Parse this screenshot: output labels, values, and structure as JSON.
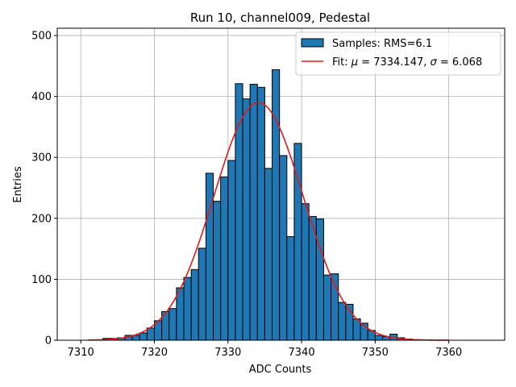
{
  "chart_data": {
    "type": "bar",
    "title": "Run 10, channel009, Pedestal",
    "xlabel": "ADC Counts",
    "ylabel": "Entries",
    "xlim": [
      7306.8,
      7367.6
    ],
    "ylim": [
      0,
      512
    ],
    "xticks": [
      7310,
      7320,
      7330,
      7340,
      7350,
      7360
    ],
    "yticks": [
      0,
      100,
      200,
      300,
      400,
      500
    ],
    "grid": true,
    "legend_position": "top-right",
    "histogram": {
      "name": "Samples: RMS=6.1",
      "color": "#1f77b4",
      "edgecolor": "#000000",
      "bin_width": 1,
      "bin_starts": [
        7313,
        7314,
        7315,
        7316,
        7317,
        7318,
        7319,
        7320,
        7321,
        7322,
        7323,
        7324,
        7325,
        7326,
        7327,
        7328,
        7329,
        7330,
        7331,
        7332,
        7333,
        7334,
        7335,
        7336,
        7337,
        7338,
        7339,
        7340,
        7341,
        7342,
        7343,
        7344,
        7345,
        7346,
        7347,
        7348,
        7349,
        7350,
        7351,
        7352,
        7353,
        7354,
        7355
      ],
      "counts": [
        3,
        3,
        4,
        8,
        8,
        12,
        20,
        32,
        47,
        52,
        86,
        103,
        116,
        151,
        274,
        228,
        268,
        295,
        421,
        396,
        420,
        415,
        282,
        444,
        303,
        170,
        323,
        224,
        203,
        199,
        107,
        109,
        62,
        59,
        35,
        28,
        16,
        8,
        6,
        10,
        4,
        2,
        1
      ]
    },
    "fit": {
      "name": "Fit: μ = 7334.147, σ = 6.068",
      "label_prefix": "Fit: ",
      "label_mu": "μ",
      "label_mid": " = 7334.147, ",
      "label_sigma": "σ",
      "label_suffix": " = 6.068",
      "color": "#e31a1c",
      "mu": 7334.147,
      "sigma": 6.068,
      "amplitude": 390,
      "x_range": [
        7311,
        7360
      ]
    }
  }
}
